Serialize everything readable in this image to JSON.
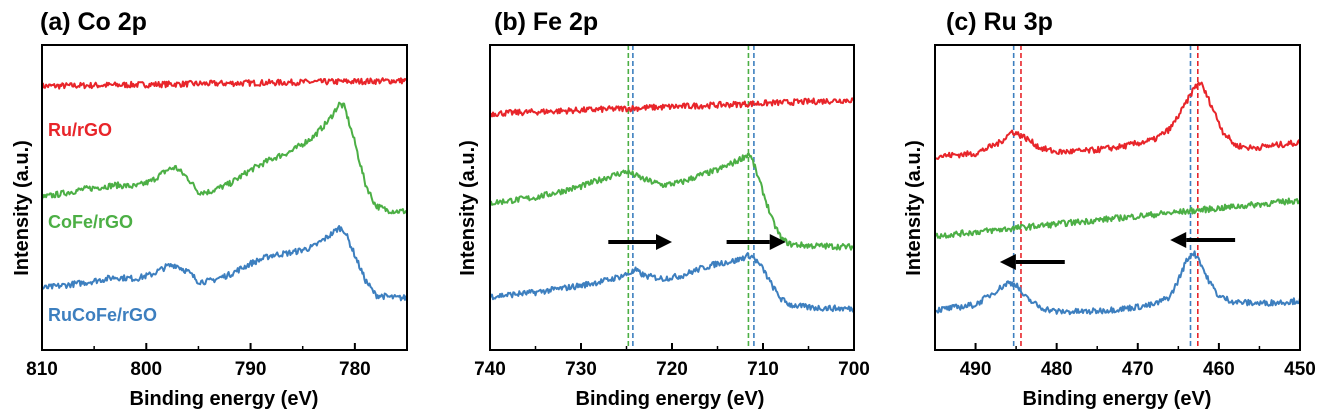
{
  "chart_data": [
    {
      "type": "line",
      "title": "(a) Co 2p",
      "xlabel": "Binding energy (eV)",
      "ylabel": "Intensity (a.u.)",
      "xlim": [
        810,
        775
      ],
      "x_reversed": true,
      "xticks": [
        810,
        800,
        790,
        780
      ],
      "yticks": "none",
      "y_units": "arbitrary, normalized 0-1 stacked offsets",
      "series": [
        {
          "name": "Ru/rGO",
          "color": "#e8252a",
          "x": [
            810,
            775
          ],
          "y": [
            0.905,
            0.925
          ]
        },
        {
          "name": "CoFe/rGO",
          "color": "#4caf45",
          "x": [
            810,
            806,
            803,
            801,
            799.5,
            798,
            797.2,
            796,
            795,
            794,
            792,
            790,
            788,
            786,
            784,
            782.5,
            781.5,
            781,
            780,
            779,
            778,
            777,
            776,
            775
          ],
          "y": [
            0.5,
            0.53,
            0.545,
            0.54,
            0.56,
            0.6,
            0.61,
            0.57,
            0.52,
            0.52,
            0.55,
            0.6,
            0.64,
            0.67,
            0.72,
            0.78,
            0.84,
            0.83,
            0.7,
            0.55,
            0.47,
            0.455,
            0.45,
            0.45
          ]
        },
        {
          "name": "RuCoFe/rGO",
          "color": "#3d7fbf",
          "x": [
            810,
            806,
            803,
            801,
            799.5,
            798,
            797.2,
            796,
            795,
            794,
            792,
            790,
            788,
            786,
            784,
            782.5,
            781.5,
            781,
            780,
            779,
            778,
            777,
            776,
            775
          ],
          "y": [
            0.17,
            0.19,
            0.21,
            0.205,
            0.22,
            0.25,
            0.255,
            0.23,
            0.195,
            0.195,
            0.22,
            0.26,
            0.29,
            0.3,
            0.32,
            0.36,
            0.39,
            0.38,
            0.29,
            0.2,
            0.145,
            0.14,
            0.135,
            0.135
          ]
        }
      ]
    },
    {
      "type": "line",
      "title": "(b) Fe 2p",
      "xlabel": "Binding energy (eV)",
      "ylabel": "Intensity (a.u.)",
      "xlim": [
        740,
        700
      ],
      "x_reversed": true,
      "xticks": [
        740,
        730,
        720,
        710,
        700
      ],
      "yticks": "none",
      "y_units": "arbitrary, normalized 0-1 stacked offsets",
      "dashed_lines": [
        {
          "x": 724.8,
          "color": "#4caf45"
        },
        {
          "x": 724.3,
          "color": "#3d7fbf"
        },
        {
          "x": 711.6,
          "color": "#4caf45"
        },
        {
          "x": 711.0,
          "color": "#3d7fbf"
        }
      ],
      "arrows": [
        {
          "from": 727,
          "to": 720,
          "direction": "right"
        },
        {
          "from": 714,
          "to": 707.5,
          "direction": "right"
        }
      ],
      "series": [
        {
          "name": "Ru/rGO",
          "color": "#e8252a",
          "x": [
            740,
            700
          ],
          "y": [
            0.805,
            0.855
          ]
        },
        {
          "name": "CoFe/rGO",
          "color": "#4caf45",
          "x": [
            740,
            735,
            730,
            727,
            725,
            723,
            721,
            719,
            717,
            715,
            713,
            711.5,
            711,
            710,
            709,
            708,
            707,
            705,
            700
          ],
          "y": [
            0.48,
            0.5,
            0.54,
            0.575,
            0.595,
            0.565,
            0.545,
            0.555,
            0.58,
            0.6,
            0.63,
            0.66,
            0.62,
            0.52,
            0.42,
            0.35,
            0.33,
            0.325,
            0.32
          ]
        },
        {
          "name": "RuCoFe/rGO",
          "color": "#3d7fbf",
          "x": [
            740,
            735,
            730,
            727,
            725,
            724,
            723,
            721,
            719,
            717,
            715,
            713,
            711.5,
            711,
            710,
            709,
            708,
            707,
            705,
            700
          ],
          "y": [
            0.14,
            0.155,
            0.18,
            0.2,
            0.22,
            0.235,
            0.215,
            0.205,
            0.215,
            0.24,
            0.26,
            0.27,
            0.29,
            0.28,
            0.24,
            0.18,
            0.13,
            0.11,
            0.1,
            0.095
          ]
        }
      ]
    },
    {
      "type": "line",
      "title": "(c) Ru 3p",
      "xlabel": "Binding energy (eV)",
      "ylabel": "Intensity (a.u.)",
      "xlim": [
        495,
        450
      ],
      "x_reversed": true,
      "xticks": [
        490,
        480,
        470,
        460,
        450
      ],
      "yticks": "none",
      "y_units": "arbitrary, normalized 0-1 stacked offsets",
      "dashed_lines": [
        {
          "x": 485.3,
          "color": "#3d7fbf"
        },
        {
          "x": 484.4,
          "color": "#e8252a"
        },
        {
          "x": 463.5,
          "color": "#3d7fbf"
        },
        {
          "x": 462.6,
          "color": "#e8252a"
        }
      ],
      "arrows": [
        {
          "from": 458,
          "to": 466,
          "direction": "left"
        },
        {
          "from": 479,
          "to": 487,
          "direction": "left"
        }
      ],
      "series": [
        {
          "name": "Ru/rGO",
          "color": "#e8252a",
          "x": [
            495,
            490,
            487,
            485.5,
            484,
            482,
            480,
            476,
            472,
            468,
            466,
            464.5,
            463,
            462.3,
            461,
            459.5,
            458,
            456,
            453,
            450
          ],
          "y": [
            0.65,
            0.66,
            0.7,
            0.74,
            0.72,
            0.68,
            0.665,
            0.67,
            0.685,
            0.71,
            0.75,
            0.82,
            0.9,
            0.92,
            0.84,
            0.74,
            0.69,
            0.68,
            0.69,
            0.7
          ]
        },
        {
          "name": "CoFe/rGO",
          "color": "#4caf45",
          "x": [
            495,
            450
          ],
          "y": [
            0.36,
            0.49
          ]
        },
        {
          "name": "RuCoFe/rGO",
          "color": "#3d7fbf",
          "x": [
            495,
            490,
            487.5,
            486,
            485,
            484,
            482,
            480,
            476,
            472,
            468,
            466,
            465,
            464,
            463.2,
            462.5,
            461.5,
            460,
            458,
            455,
            452,
            450
          ],
          "y": [
            0.09,
            0.11,
            0.16,
            0.19,
            0.185,
            0.14,
            0.1,
            0.085,
            0.085,
            0.095,
            0.11,
            0.14,
            0.2,
            0.27,
            0.3,
            0.28,
            0.21,
            0.14,
            0.12,
            0.115,
            0.12,
            0.125
          ]
        }
      ]
    }
  ],
  "panel_a_labels": [
    "Ru/rGO",
    "CoFe/rGO",
    "RuCoFe/rGO"
  ],
  "colors": {
    "ru": "#e8252a",
    "cofe": "#4caf45",
    "rucofe": "#3d7fbf",
    "axis": "#000000"
  }
}
